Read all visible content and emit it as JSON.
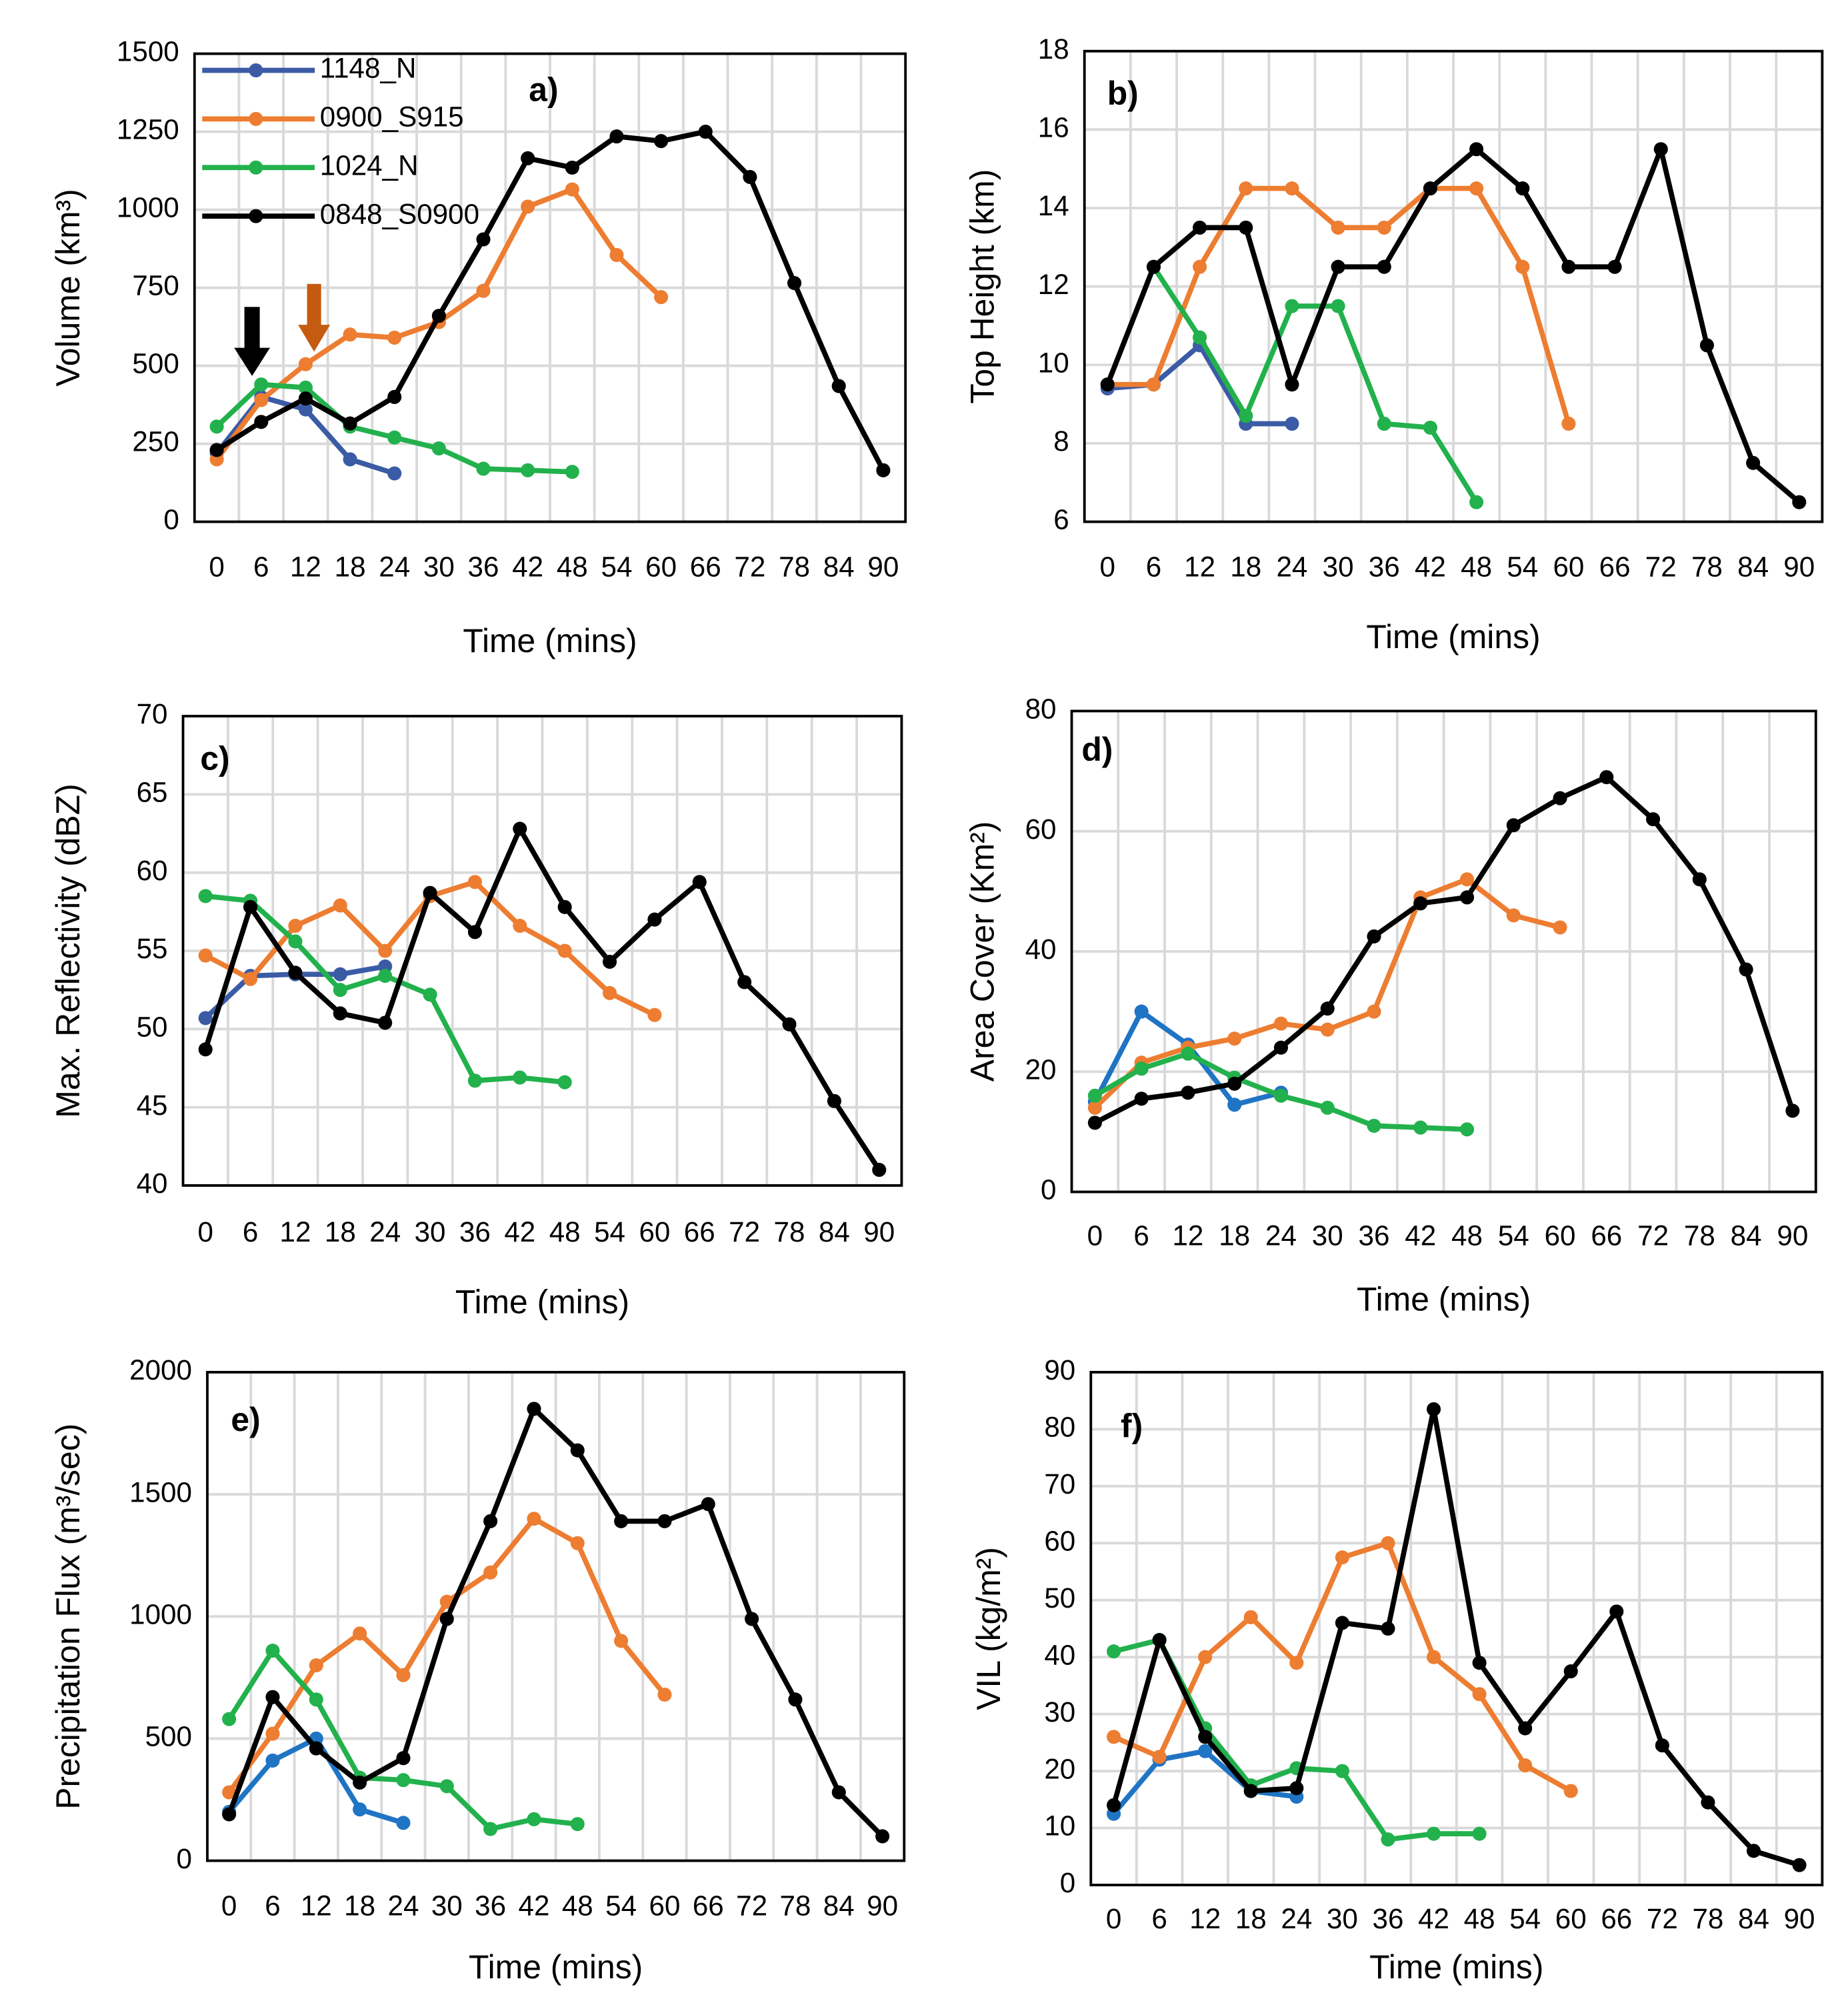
{
  "chart_data": [
    {
      "type": "line",
      "title": "a)",
      "xlabel": "Time (mins)",
      "ylabel": "Volume (km³)",
      "categories": [
        "0",
        "6",
        "12",
        "18",
        "24",
        "30",
        "36",
        "42",
        "48",
        "54",
        "60",
        "66",
        "72",
        "78",
        "84",
        "90"
      ],
      "ylim": [
        0,
        1500
      ],
      "yticks": [
        0,
        250,
        500,
        750,
        1000,
        1250,
        1500
      ],
      "grid": true,
      "legend": "upper left",
      "series": [
        {
          "name": "1148_N",
          "color": "#3b5ba5",
          "values": [
            220,
            400,
            360,
            200,
            155,
            null,
            null,
            null,
            null,
            null,
            null,
            null,
            null,
            null,
            null,
            null
          ]
        },
        {
          "name": "0900_S915",
          "color": "#ed7d31",
          "values": [
            200,
            390,
            505,
            600,
            590,
            640,
            740,
            1010,
            1065,
            855,
            720,
            null,
            null,
            null,
            null,
            null
          ]
        },
        {
          "name": "1024_N",
          "color": "#22b14c",
          "values": [
            305,
            440,
            430,
            305,
            270,
            235,
            170,
            165,
            160,
            null,
            null,
            null,
            null,
            null,
            null,
            null
          ]
        },
        {
          "name": "0848_S0900",
          "color": "#000000",
          "values": [
            230,
            320,
            395,
            315,
            400,
            660,
            905,
            1165,
            1135,
            1235,
            1220,
            1250,
            1105,
            765,
            435,
            165
          ]
        }
      ]
    },
    {
      "type": "line",
      "title": "b)",
      "xlabel": "Time (mins)",
      "ylabel": "Top Height (km)",
      "categories": [
        "0",
        "6",
        "12",
        "18",
        "24",
        "30",
        "36",
        "42",
        "48",
        "54",
        "60",
        "66",
        "72",
        "78",
        "84",
        "90"
      ],
      "ylim": [
        6,
        18
      ],
      "yticks": [
        6,
        8,
        10,
        12,
        14,
        16,
        18
      ],
      "grid": true,
      "series": [
        {
          "color": "#3b5ba5",
          "values": [
            9.4,
            9.5,
            10.5,
            8.5,
            8.5,
            null,
            null,
            null,
            null,
            null,
            null,
            null,
            null,
            null,
            null,
            null
          ]
        },
        {
          "color": "#ed7d31",
          "values": [
            9.5,
            9.5,
            12.5,
            14.5,
            14.5,
            13.5,
            13.5,
            14.5,
            14.5,
            12.5,
            8.5,
            null,
            null,
            null,
            null,
            null
          ]
        },
        {
          "color": "#22b14c",
          "values": [
            9.5,
            12.5,
            10.7,
            8.7,
            11.5,
            11.5,
            8.5,
            8.4,
            6.5,
            null,
            null,
            null,
            null,
            null,
            null,
            null
          ]
        },
        {
          "color": "#000000",
          "values": [
            9.5,
            12.5,
            13.5,
            13.5,
            9.5,
            12.5,
            12.5,
            14.5,
            15.5,
            14.5,
            12.5,
            12.5,
            15.5,
            10.5,
            7.5,
            6.5
          ]
        }
      ]
    },
    {
      "type": "line",
      "title": "c)",
      "xlabel": "Time (mins)",
      "ylabel": "Max. Reflectivity (dBZ)",
      "categories": [
        "0",
        "6",
        "12",
        "18",
        "24",
        "30",
        "36",
        "42",
        "48",
        "54",
        "60",
        "66",
        "72",
        "78",
        "84",
        "90"
      ],
      "ylim": [
        40,
        70
      ],
      "yticks": [
        40,
        45,
        50,
        55,
        60,
        65,
        70
      ],
      "grid": true,
      "series": [
        {
          "color": "#3b5ba5",
          "values": [
            50.7,
            53.4,
            53.5,
            53.5,
            54,
            null,
            null,
            null,
            null,
            null,
            null,
            null,
            null,
            null,
            null,
            null
          ]
        },
        {
          "color": "#ed7d31",
          "values": [
            54.7,
            53.2,
            56.6,
            57.9,
            55,
            58.5,
            59.4,
            56.6,
            55,
            52.3,
            50.9,
            null,
            null,
            null,
            null,
            null
          ]
        },
        {
          "color": "#22b14c",
          "values": [
            58.5,
            58.2,
            55.6,
            52.5,
            53.4,
            52.2,
            46.7,
            46.9,
            46.6,
            null,
            null,
            null,
            null,
            null,
            null,
            null
          ]
        },
        {
          "color": "#000000",
          "values": [
            48.7,
            57.8,
            53.6,
            51,
            50.4,
            58.7,
            56.2,
            62.8,
            57.8,
            54.3,
            57,
            59.4,
            53,
            50.3,
            45.4,
            41
          ]
        }
      ]
    },
    {
      "type": "line",
      "title": "d)",
      "xlabel": "Time (mins)",
      "ylabel": "Area Cover (Km²)",
      "categories": [
        "0",
        "6",
        "12",
        "18",
        "24",
        "30",
        "36",
        "42",
        "48",
        "54",
        "60",
        "66",
        "72",
        "78",
        "84",
        "90"
      ],
      "ylim": [
        0,
        80
      ],
      "yticks": [
        0,
        20,
        40,
        60,
        80
      ],
      "grid": true,
      "series": [
        {
          "color": "#1f74c4",
          "values": [
            15,
            30,
            24.5,
            14.5,
            16.5,
            null,
            null,
            null,
            null,
            null,
            null,
            null,
            null,
            null,
            null,
            null
          ]
        },
        {
          "color": "#ed7d31",
          "values": [
            14,
            21.5,
            24,
            25.5,
            28,
            27,
            30,
            49,
            52,
            46,
            44,
            null,
            null,
            null,
            null,
            null
          ]
        },
        {
          "color": "#22b14c",
          "values": [
            16,
            20.5,
            23,
            19,
            16,
            14,
            11,
            10.7,
            10.4,
            null,
            null,
            null,
            null,
            null,
            null,
            null
          ]
        },
        {
          "color": "#000000",
          "values": [
            11.5,
            15.5,
            16.5,
            18,
            24,
            30.5,
            42.5,
            48,
            49,
            61,
            65.5,
            69,
            62,
            52,
            37,
            13.5
          ]
        }
      ]
    },
    {
      "type": "line",
      "title": "e)",
      "xlabel": "Time (mins)",
      "ylabel": "Precipitation Flux  (m³/sec)",
      "categories": [
        "0",
        "6",
        "12",
        "18",
        "24",
        "30",
        "36",
        "42",
        "48",
        "54",
        "60",
        "66",
        "72",
        "78",
        "84",
        "90"
      ],
      "ylim": [
        0,
        2000
      ],
      "yticks": [
        0,
        500,
        1000,
        1500,
        2000
      ],
      "grid": true,
      "series": [
        {
          "color": "#1f74c4",
          "values": [
            200,
            410,
            500,
            210,
            155,
            null,
            null,
            null,
            null,
            null,
            null,
            null,
            null,
            null,
            null,
            null
          ]
        },
        {
          "color": "#ed7d31",
          "values": [
            280,
            520,
            800,
            930,
            760,
            1060,
            1180,
            1400,
            1300,
            900,
            680,
            null,
            null,
            null,
            null,
            null
          ]
        },
        {
          "color": "#22b14c",
          "values": [
            580,
            860,
            660,
            340,
            330,
            305,
            130,
            170,
            150,
            null,
            null,
            null,
            null,
            null,
            null,
            null
          ]
        },
        {
          "color": "#000000",
          "values": [
            190,
            670,
            460,
            320,
            420,
            990,
            1390,
            1850,
            1680,
            1390,
            1390,
            1460,
            990,
            660,
            280,
            100
          ]
        }
      ]
    },
    {
      "type": "line",
      "title": "f)",
      "xlabel": "Time (mins)",
      "ylabel": "VIL (kg/m²)",
      "categories": [
        "0",
        "6",
        "12",
        "18",
        "24",
        "30",
        "36",
        "42",
        "48",
        "54",
        "60",
        "66",
        "72",
        "78",
        "84",
        "90"
      ],
      "ylim": [
        0,
        90
      ],
      "yticks": [
        0,
        10,
        20,
        30,
        40,
        50,
        60,
        70,
        80,
        90
      ],
      "grid": true,
      "series": [
        {
          "color": "#1f74c4",
          "values": [
            12.5,
            22,
            23.5,
            16.5,
            15.5,
            null,
            null,
            null,
            null,
            null,
            null,
            null,
            null,
            null,
            null,
            null
          ]
        },
        {
          "color": "#ed7d31",
          "values": [
            26,
            22.5,
            40,
            47,
            39,
            57.5,
            60,
            40,
            33.5,
            21,
            16.5,
            null,
            null,
            null,
            null,
            null
          ]
        },
        {
          "color": "#22b14c",
          "values": [
            41,
            43,
            27.5,
            17.5,
            20.5,
            20,
            8,
            9,
            9,
            null,
            null,
            null,
            null,
            null,
            null,
            null
          ]
        },
        {
          "color": "#000000",
          "values": [
            14,
            43,
            26,
            16.5,
            17,
            46,
            45,
            83.5,
            39,
            27.5,
            37.5,
            48,
            24.5,
            14.5,
            6,
            3.5
          ]
        }
      ]
    }
  ]
}
